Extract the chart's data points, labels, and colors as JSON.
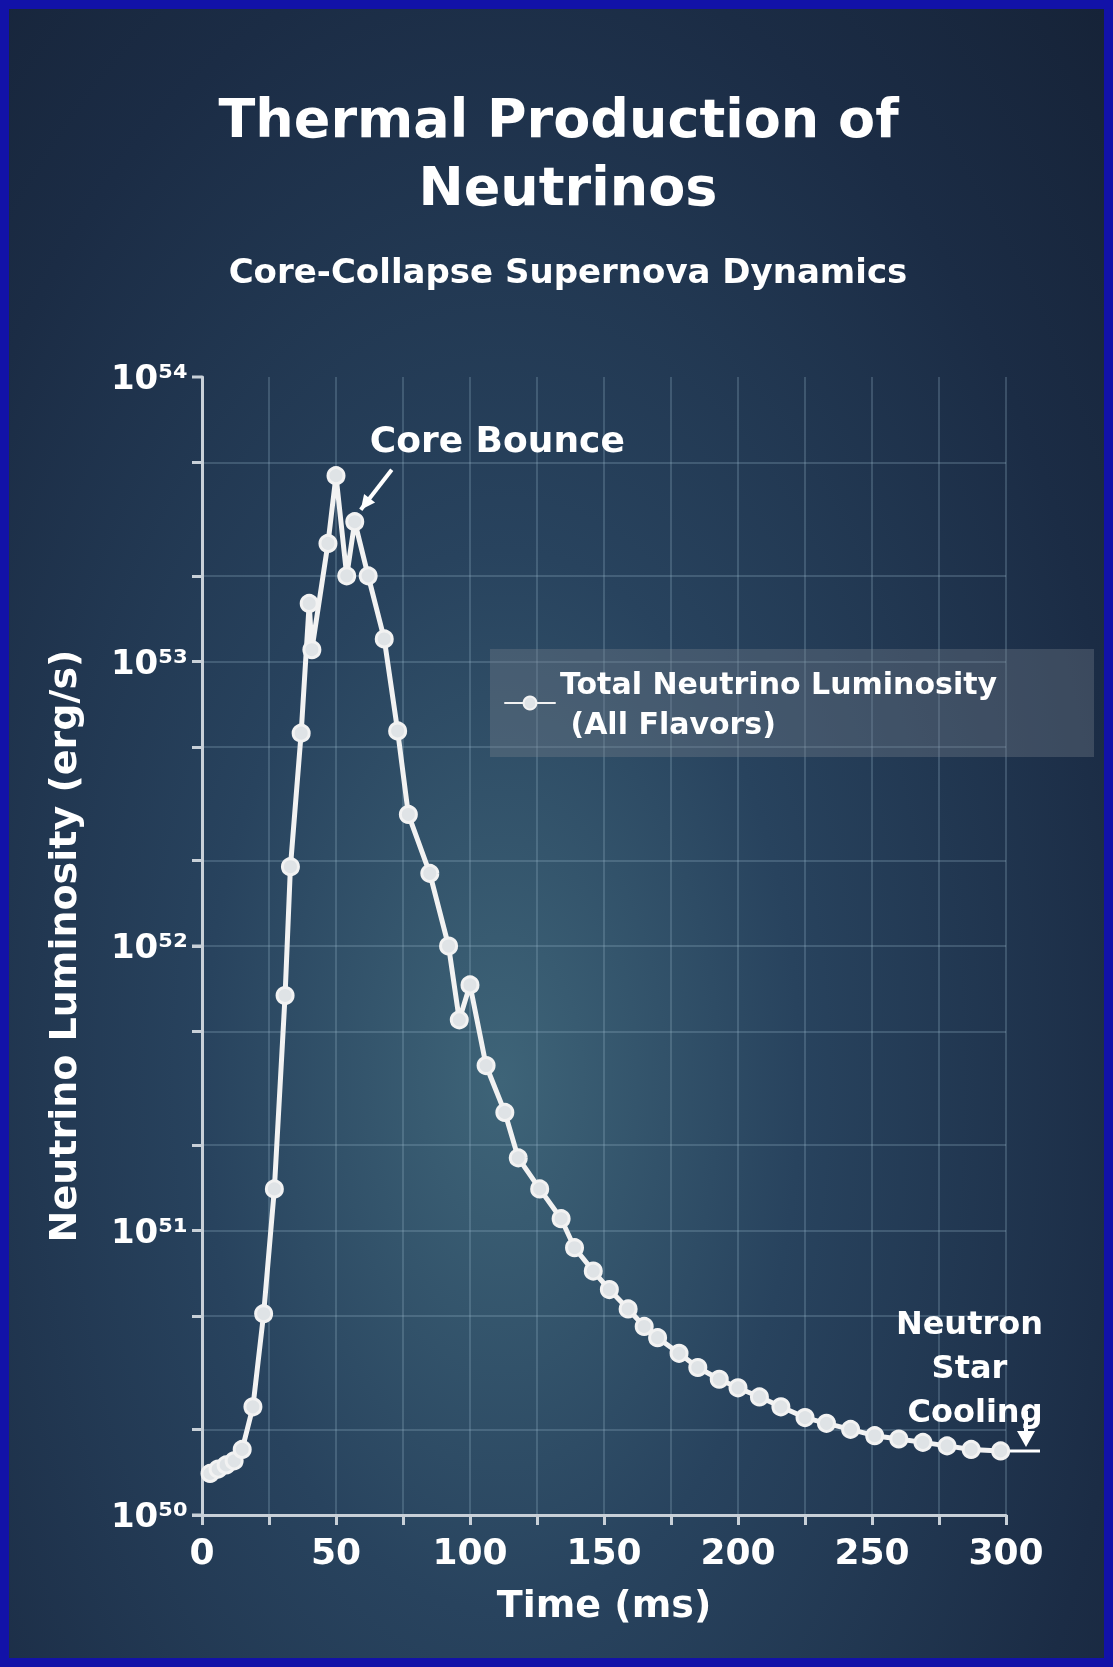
{
  "chart_data": {
    "type": "line",
    "title": "Thermal Production of Neutrinos",
    "subtitle": "Core-Collapse Supernova Dynamics",
    "xlabel": "Time (ms)",
    "ylabel": "Neutrino Luminosity (erg/s)",
    "log": "y",
    "grid": true,
    "legend": "top right",
    "marker": "circle",
    "line_style": "solid",
    "xlim": [
      0,
      300
    ],
    "xticks": [
      0,
      {
        "value": 25,
        "label": null
      },
      50,
      {
        "value": 75,
        "label": null
      },
      100,
      {
        "value": 125,
        "label": null
      },
      150,
      {
        "value": 175,
        "label": null
      },
      200,
      {
        "value": 225,
        "label": null
      },
      250,
      {
        "value": 275,
        "label": null
      },
      300
    ],
    "ylim": [
      1e+50,
      1e+54
    ],
    "yticks": [
      {
        "value": 1e+50,
        "label": "10⁵⁰"
      },
      {
        "value": 2e+50,
        "label": null
      },
      {
        "value": 5e+50,
        "label": null
      },
      {
        "value": 1e+51,
        "label": "10⁵¹"
      },
      {
        "value": 2e+51,
        "label": null
      },
      {
        "value": 5e+51,
        "label": null
      },
      {
        "value": 1e+52,
        "label": "10⁵²"
      },
      {
        "value": 2e+52,
        "label": null
      },
      {
        "value": 5e+52,
        "label": null
      },
      {
        "value": 1e+53,
        "label": "10⁵³"
      },
      {
        "value": 2e+53,
        "label": null
      },
      {
        "value": 5e+53,
        "label": null
      },
      {
        "value": 1e+54,
        "label": "10⁵⁴"
      }
    ],
    "series": [
      {
        "name": "Total Neutrino Luminosity (All Flavors)",
        "color": "#f2f2f2",
        "x": [
          3,
          6,
          9,
          12,
          15,
          19,
          23,
          27,
          31,
          33,
          37,
          40,
          41,
          47,
          50,
          54,
          57,
          62,
          68,
          73,
          77,
          85,
          92,
          96,
          100,
          106,
          113,
          118,
          126,
          134,
          139,
          146,
          152,
          159,
          165,
          170,
          178,
          185,
          193,
          200,
          208,
          216,
          225,
          233,
          242,
          251,
          260,
          269,
          278,
          287,
          298
        ],
        "values": [
          1.4e+50,
          1.45e+50,
          1.5e+50,
          1.55e+50,
          1.7e+50,
          2.4e+50,
          5.1e+50,
          1.4e+51,
          6.7e+51,
          1.9e+52,
          5.6e+52,
          1.6e+53,
          1.1e+53,
          2.6e+53,
          4.5e+53,
          2e+53,
          3.1e+53,
          2e+53,
          1.2e+53,
          5.7e+52,
          2.9e+52,
          1.8e+52,
          1e+52,
          5.5e+51,
          7.3e+51,
          3.8e+51,
          2.6e+51,
          1.8e+51,
          1.4e+51,
          1.1e+51,
          8.7e+50,
          7.2e+50,
          6.2e+50,
          5.3e+50,
          4.6e+50,
          4.2e+50,
          3.7e+50,
          3.3e+50,
          3e+50,
          2.8e+50,
          2.6e+50,
          2.4e+50,
          2.2e+50,
          2.1e+50,
          2e+50,
          1.9e+50,
          1.85e+50,
          1.8e+50,
          1.75e+50,
          1.7e+50,
          1.68e+50
        ]
      }
    ],
    "annotations": [
      {
        "text": "Core Bounce",
        "x": 57,
        "y": 3.1e+53
      },
      {
        "text": "Neutron Star Cooling",
        "x": 300,
        "y": 1.68e+50
      }
    ]
  }
}
